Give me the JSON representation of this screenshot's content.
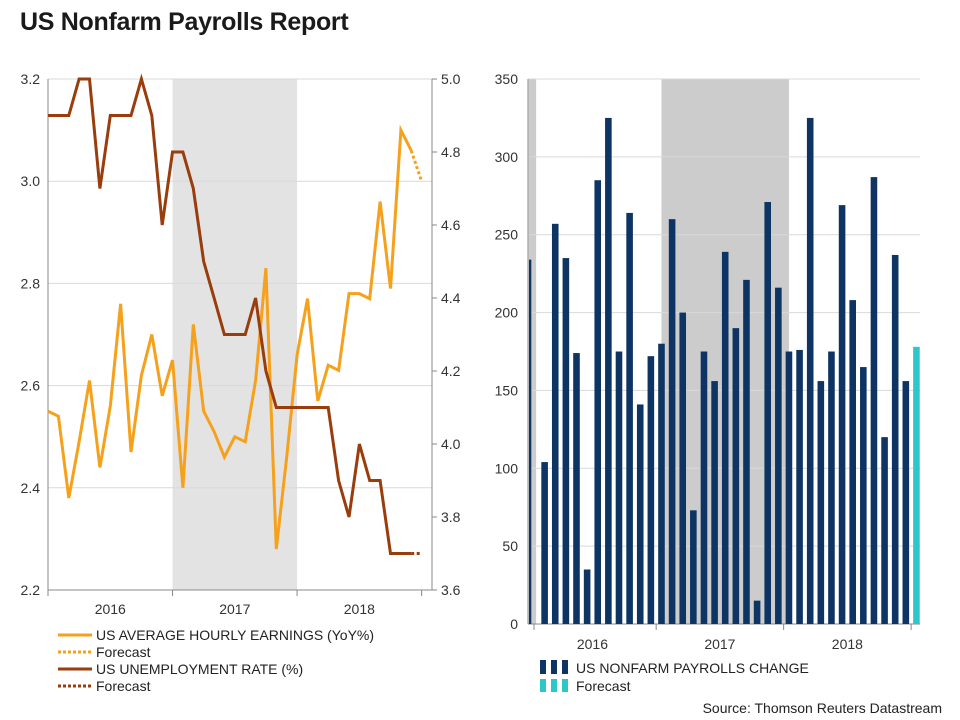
{
  "title": "US Nonfarm Payrolls Report",
  "source": "Source: Thomson Reuters Datastream",
  "colors": {
    "earnings": "#f5a11c",
    "unemployment": "#993d0d",
    "payrolls": "#0d3462",
    "forecast_bar": "#2ec7c9",
    "shade_left": "#e3e3e3",
    "shade_right": "#cccccc",
    "grid": "#d9d9d9",
    "axis": "#888888"
  },
  "chart_data": [
    {
      "type": "line",
      "title": "",
      "x_ticks": [
        "2016",
        "2017",
        "2018"
      ],
      "x_range": [
        0,
        37
      ],
      "y_left": {
        "label": "",
        "lim": [
          2.2,
          3.2
        ],
        "ticks": [
          "2.2",
          "2.4",
          "2.6",
          "2.8",
          "3.0",
          "3.2"
        ]
      },
      "y_right": {
        "label": "",
        "lim": [
          3.6,
          5.0
        ],
        "ticks": [
          "3.6",
          "3.8",
          "4.0",
          "4.2",
          "4.4",
          "4.6",
          "4.8",
          "5.0"
        ]
      },
      "shaded_x": [
        12,
        24
      ],
      "series": [
        {
          "name": "US AVERAGE HOURLY EARNINGS (YoY%)",
          "axis": "left",
          "x": [
            0,
            1,
            2,
            3,
            4,
            5,
            6,
            7,
            8,
            9,
            10,
            11,
            12,
            13,
            14,
            15,
            16,
            17,
            18,
            19,
            20,
            21,
            22,
            23,
            24,
            25,
            26,
            27,
            28,
            29,
            30,
            31,
            32,
            33,
            34,
            35
          ],
          "values": [
            2.55,
            2.54,
            2.38,
            2.49,
            2.61,
            2.44,
            2.56,
            2.76,
            2.47,
            2.62,
            2.7,
            2.58,
            2.65,
            2.4,
            2.72,
            2.55,
            2.51,
            2.46,
            2.5,
            2.49,
            2.61,
            2.83,
            2.28,
            2.46,
            2.66,
            2.77,
            2.57,
            2.64,
            2.63,
            2.78,
            2.78,
            2.77,
            2.96,
            2.79,
            3.1,
            3.06
          ]
        },
        {
          "name": "Forecast",
          "axis": "left",
          "dashed": true,
          "x": [
            35,
            36
          ],
          "values": [
            3.06,
            3.0
          ]
        },
        {
          "name": "US UNEMPLOYMENT RATE (%)",
          "axis": "right",
          "x": [
            0,
            1,
            2,
            3,
            4,
            5,
            6,
            7,
            8,
            9,
            10,
            11,
            12,
            13,
            14,
            15,
            16,
            17,
            18,
            19,
            20,
            21,
            22,
            23,
            24,
            25,
            26,
            27,
            28,
            29,
            30,
            31,
            32,
            33,
            34,
            35
          ],
          "values": [
            4.9,
            4.9,
            4.9,
            5.0,
            5.0,
            4.7,
            4.9,
            4.9,
            4.9,
            5.0,
            4.9,
            4.6,
            4.8,
            4.8,
            4.7,
            4.5,
            4.4,
            4.3,
            4.3,
            4.3,
            4.4,
            4.2,
            4.1,
            4.1,
            4.1,
            4.1,
            4.1,
            4.1,
            3.9,
            3.8,
            4.0,
            3.9,
            3.9,
            3.7,
            3.7,
            3.7
          ]
        },
        {
          "name": "Forecast",
          "axis": "right",
          "dashed": true,
          "x": [
            35,
            36
          ],
          "values": [
            3.7,
            3.7
          ]
        }
      ]
    },
    {
      "type": "bar",
      "title": "",
      "x_ticks": [
        "2016",
        "2017",
        "2018"
      ],
      "x_range": [
        0,
        37
      ],
      "ylim": [
        0,
        350
      ],
      "y_ticks": [
        "0",
        "50",
        "100",
        "150",
        "200",
        "250",
        "300",
        "350"
      ],
      "shaded_x": [
        [
          -0.5,
          0.2
        ],
        [
          12,
          24
        ]
      ],
      "series": [
        {
          "name": "US NONFARM PAYROLLS CHANGE",
          "x": [
            0,
            1,
            2,
            3,
            4,
            5,
            6,
            7,
            8,
            9,
            10,
            11,
            12,
            13,
            14,
            15,
            16,
            17,
            18,
            19,
            20,
            21,
            22,
            23,
            24,
            25,
            26,
            27,
            28,
            29,
            30,
            31,
            32,
            33,
            34,
            35
          ],
          "values": [
            234,
            104,
            257,
            235,
            174,
            35,
            285,
            325,
            175,
            264,
            141,
            172,
            180,
            260,
            200,
            73,
            175,
            156,
            239,
            190,
            221,
            15,
            271,
            216,
            175,
            176,
            325,
            156,
            175,
            269,
            208,
            165,
            287,
            120,
            237,
            156
          ]
        },
        {
          "name": "Forecast",
          "x": [
            36
          ],
          "values": [
            178
          ]
        }
      ]
    }
  ]
}
